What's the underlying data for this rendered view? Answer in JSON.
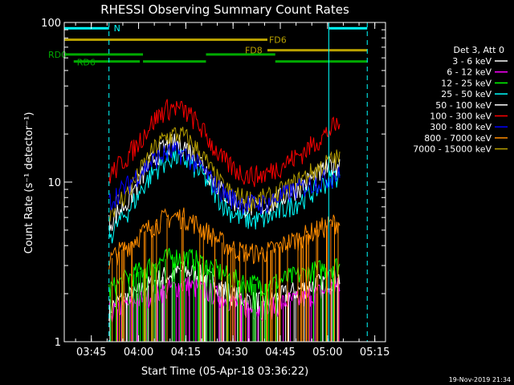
{
  "chart_data": {
    "type": "line",
    "title": "RHESSI Observing Summary Count Rates",
    "xlabel": "Start Time (05-Apr-18 03:36:22)",
    "ylabel": "Count Rate (s⁻¹ detector⁻¹)",
    "footer_date": "19-Nov-2019 21:34",
    "x_unit": "minutes since 03:36:22",
    "xlim": [
      0,
      102
    ],
    "ylim": [
      1,
      100
    ],
    "yscale": "log",
    "x_ticks": [
      {
        "label": "03:45",
        "value": 8.6
      },
      {
        "label": "04:00",
        "value": 23.6
      },
      {
        "label": "04:15",
        "value": 38.6
      },
      {
        "label": "04:30",
        "value": 53.6
      },
      {
        "label": "04:45",
        "value": 68.6
      },
      {
        "label": "05:00",
        "value": 83.6
      },
      {
        "label": "05:15",
        "value": 98.6
      }
    ],
    "y_ticks": [
      {
        "label": "1",
        "value": 1
      },
      {
        "label": "10",
        "value": 10
      },
      {
        "label": "100",
        "value": 100
      }
    ],
    "legend": {
      "title": "Det 3, Att 0",
      "position": "right"
    },
    "data_start": 14.2,
    "data_end": 87.6,
    "x": [
      14.2,
      17,
      20,
      23,
      26,
      29,
      32,
      35,
      38,
      41,
      44,
      47,
      50,
      53,
      56,
      59,
      62,
      65,
      68,
      71,
      74,
      77,
      80,
      83,
      86,
      87.6
    ],
    "series": [
      {
        "name": "3 - 6 keV",
        "color": "#ffffff",
        "values": [
          1.6,
          1.8,
          1.9,
          2.0,
          2.2,
          2.4,
          2.6,
          2.7,
          2.8,
          2.7,
          2.6,
          2.4,
          2.2,
          2.0,
          1.9,
          1.8,
          1.8,
          1.8,
          1.9,
          2.0,
          2.1,
          2.2,
          2.3,
          2.4,
          2.5,
          2.5
        ]
      },
      {
        "name": "6 - 12 keV",
        "color": "#ff00ff",
        "values": [
          1.5,
          1.6,
          1.7,
          1.8,
          1.9,
          2.0,
          2.1,
          2.2,
          2.3,
          2.2,
          2.1,
          2.0,
          1.9,
          1.8,
          1.7,
          1.6,
          1.6,
          1.6,
          1.7,
          1.8,
          1.8,
          1.9,
          2.0,
          2.1,
          2.2,
          2.2
        ]
      },
      {
        "name": "12 - 25 keV",
        "color": "#00ff00",
        "values": [
          2.1,
          2.3,
          2.5,
          2.7,
          2.9,
          3.1,
          3.3,
          3.4,
          3.4,
          3.3,
          3.1,
          2.9,
          2.7,
          2.5,
          2.4,
          2.3,
          2.3,
          2.3,
          2.4,
          2.5,
          2.6,
          2.7,
          2.8,
          2.9,
          3.0,
          3.0
        ]
      },
      {
        "name": "25 - 50 keV",
        "color": "#00ffff",
        "values": [
          4.5,
          5.5,
          6.5,
          8.0,
          10.0,
          12.0,
          13.5,
          14.5,
          14.0,
          12.5,
          11.0,
          9.0,
          7.5,
          6.5,
          6.0,
          5.8,
          5.8,
          6.0,
          6.5,
          7.0,
          7.5,
          8.2,
          9.0,
          10.0,
          11.0,
          11.0
        ]
      },
      {
        "name": "50 - 100 keV",
        "color": "#ffffff",
        "values": [
          5.5,
          6.5,
          7.5,
          9.5,
          12.0,
          14.5,
          16.5,
          17.5,
          17.0,
          15.0,
          13.0,
          10.5,
          8.8,
          7.8,
          7.2,
          7.0,
          7.0,
          7.2,
          7.8,
          8.5,
          9.2,
          10.0,
          11.0,
          12.0,
          13.0,
          13.0
        ]
      },
      {
        "name": "100 - 300 keV",
        "color": "#ff0000",
        "values": [
          11.0,
          12.5,
          14.5,
          17.0,
          21.0,
          25.0,
          28.5,
          29.5,
          28.0,
          25.0,
          21.0,
          17.0,
          14.0,
          12.5,
          11.5,
          11.0,
          11.0,
          11.5,
          12.5,
          13.5,
          14.5,
          16.0,
          18.0,
          20.0,
          22.5,
          23.0
        ]
      },
      {
        "name": "300 - 800 keV",
        "color": "#0000ff",
        "values": [
          7.5,
          8.5,
          9.5,
          11.0,
          12.5,
          14.0,
          15.0,
          15.5,
          15.0,
          13.5,
          12.0,
          10.0,
          8.8,
          8.0,
          7.5,
          7.3,
          7.3,
          7.5,
          8.0,
          8.5,
          9.0,
          9.5,
          10.0,
          10.5,
          11.0,
          11.0
        ]
      },
      {
        "name": "800 - 7000 keV",
        "color": "#ff8c00",
        "values": [
          3.2,
          3.6,
          4.0,
          4.5,
          5.0,
          5.5,
          5.9,
          6.1,
          6.0,
          5.6,
          5.1,
          4.6,
          4.2,
          3.9,
          3.7,
          3.6,
          3.6,
          3.7,
          3.9,
          4.2,
          4.4,
          4.7,
          5.0,
          5.3,
          5.6,
          5.6
        ]
      },
      {
        "name": "7000 - 15000 keV",
        "color": "#b8a000",
        "values": [
          6.5,
          7.5,
          8.5,
          10.5,
          13.5,
          16.5,
          19.0,
          20.0,
          19.5,
          17.0,
          14.5,
          11.5,
          9.5,
          8.5,
          8.0,
          7.8,
          7.8,
          8.0,
          8.5,
          9.2,
          10.0,
          11.0,
          12.0,
          13.0,
          14.0,
          14.0
        ]
      }
    ],
    "state_bars": [
      {
        "label": "N",
        "color": "#00ffff",
        "y": 92,
        "intervals": [
          [
            0,
            14.2
          ],
          [
            84.0,
            96.2
          ]
        ]
      },
      {
        "label": "FD6",
        "color": "#b8a000",
        "y": 78,
        "intervals": [
          [
            0,
            64.5
          ]
        ]
      },
      {
        "label": "FD8",
        "color": "#b8a000",
        "y": 67,
        "intervals": [
          [
            64.5,
            96.2
          ]
        ]
      },
      {
        "label": "RD0",
        "color": "#00aa00",
        "y": 63,
        "intervals": [
          [
            0,
            25.0
          ],
          [
            45.0,
            67.0
          ]
        ]
      },
      {
        "label": "RD6",
        "color": "#00aa00",
        "y": 57,
        "intervals": [
          [
            3.0,
            24.0
          ],
          [
            25.0,
            45.0
          ],
          [
            67.0,
            96.2
          ]
        ]
      }
    ],
    "vertical_markers": [
      {
        "x": 14.2,
        "style": "dashed",
        "color": "#00ffff"
      },
      {
        "x": 84.0,
        "style": "solid",
        "color": "#00ffff"
      },
      {
        "x": 96.2,
        "style": "dashed",
        "color": "#00ffff"
      }
    ]
  }
}
